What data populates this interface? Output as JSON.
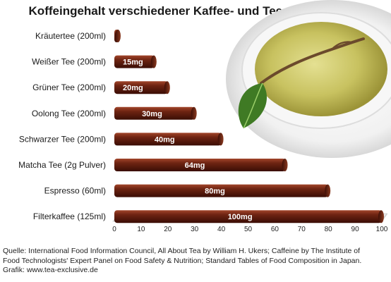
{
  "chart_data": {
    "type": "bar",
    "orientation": "horizontal",
    "title": "Koffeingehalt verschiedener Kaffee- und Teesorten (in mg)",
    "categories": [
      "Kräutertee (200ml)",
      "Weißer Tee (200ml)",
      "Grüner Tee (200ml)",
      "Oolong Tee (200ml)",
      "Schwarzer Tee (200ml)",
      "Matcha Tee (2g Pulver)",
      "Espresso (60ml)",
      "Filterkaffee (125ml)"
    ],
    "values": [
      0,
      15,
      20,
      30,
      40,
      64,
      80,
      100
    ],
    "data_labels": [
      "",
      "15mg",
      "20mg",
      "30mg",
      "40mg",
      "64mg",
      "80mg",
      "100mg"
    ],
    "xlim": [
      0,
      100
    ],
    "xticks": [
      0,
      10,
      20,
      30,
      40,
      50,
      60,
      70,
      80,
      90,
      100
    ],
    "grid": false,
    "bar_color": "#5a1a0c"
  },
  "source": {
    "line1": "Quelle: International Food Information Council, All About Tea by William H. Ukers; Caffeine by The Institute of",
    "line2": "Food Technologists' Expert Panel on Food Safety & Nutrition; Standard Tables of Food Composition in Japan.",
    "line3": "Grafik: www.tea-exclusive.de"
  }
}
